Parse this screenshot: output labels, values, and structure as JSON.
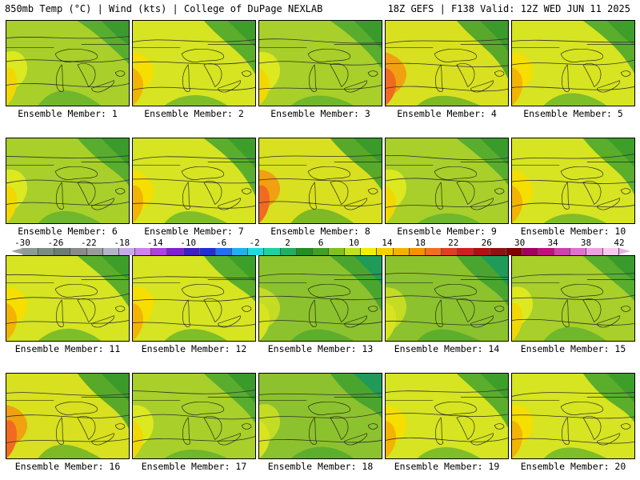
{
  "header": {
    "left": "850mb Temp (°C) | Wind (kts) | College of DuPage NEXLAB",
    "right": "18Z GEFS | F138 Valid: 12Z WED JUN 11 2025"
  },
  "colorbar": {
    "labels": [
      "-30",
      "-26",
      "-22",
      "-18",
      "-14",
      "-10",
      "-6",
      "-2",
      "2",
      "6",
      "10",
      "14",
      "18",
      "22",
      "26",
      "30",
      "34",
      "38",
      "42"
    ],
    "colors": [
      "#8c9c94",
      "#7c8c84",
      "#6c7c74",
      "#8a8a8a",
      "#9a9a9a",
      "#b4b4c8",
      "#c8a8e8",
      "#d080f0",
      "#b040e0",
      "#8020d0",
      "#4020c0",
      "#2030d0",
      "#2070f0",
      "#20b0f0",
      "#20d8e0",
      "#20d0a0",
      "#20b060",
      "#209020",
      "#40a020",
      "#80c020",
      "#c0e020",
      "#f0f000",
      "#f8d000",
      "#f8b000",
      "#f89000",
      "#f07020",
      "#e04020",
      "#d02020",
      "#b01010",
      "#901010",
      "#800000",
      "#a00060",
      "#c01080",
      "#d040b0",
      "#e070d0",
      "#f0a0e0",
      "#f8c8f0"
    ]
  },
  "panels": [
    {
      "label": "Ensemble Member: 1",
      "palette": "mild"
    },
    {
      "label": "Ensemble Member: 2",
      "palette": "warm"
    },
    {
      "label": "Ensemble Member: 3",
      "palette": "mild"
    },
    {
      "label": "Ensemble Member: 4",
      "palette": "hot"
    },
    {
      "label": "Ensemble Member: 5",
      "palette": "warm"
    },
    {
      "label": "Ensemble Member: 6",
      "palette": "mild"
    },
    {
      "label": "Ensemble Member: 7",
      "palette": "warm"
    },
    {
      "label": "Ensemble Member: 8",
      "palette": "hot"
    },
    {
      "label": "Ensemble Member: 9",
      "palette": "mild"
    },
    {
      "label": "Ensemble Member: 10",
      "palette": "warm"
    },
    {
      "label": "Ensemble Member: 11",
      "palette": "warm"
    },
    {
      "label": "Ensemble Member: 12",
      "palette": "warm"
    },
    {
      "label": "Ensemble Member: 13",
      "palette": "cool"
    },
    {
      "label": "Ensemble Member: 14",
      "palette": "cool"
    },
    {
      "label": "Ensemble Member: 15",
      "palette": "mild"
    },
    {
      "label": "Ensemble Member: 16",
      "palette": "hot"
    },
    {
      "label": "Ensemble Member: 17",
      "palette": "mild"
    },
    {
      "label": "Ensemble Member: 18",
      "palette": "cool"
    },
    {
      "label": "Ensemble Member: 19",
      "palette": "warm"
    },
    {
      "label": "Ensemble Member: 20",
      "palette": "warm"
    }
  ]
}
